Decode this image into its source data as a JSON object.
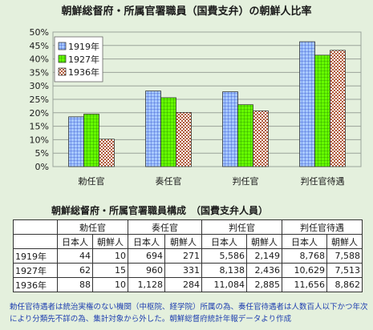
{
  "chart_data": {
    "type": "bar",
    "title": "朝鮮総督府・所属官署職員（国費支弁）の朝鮮人比率",
    "categories": [
      "勅任官",
      "奏任官",
      "判任官",
      "判任官待遇"
    ],
    "y_tick_labels": [
      "0%",
      "5%",
      "10%",
      "15%",
      "20%",
      "25%",
      "30%",
      "35%",
      "40%",
      "45%",
      "50%"
    ],
    "ylim": [
      0,
      50
    ],
    "grid": true,
    "legend_position": "top-left",
    "series": [
      {
        "name": "1919年",
        "values": [
          18.5,
          28.1,
          27.8,
          46.4
        ],
        "color": "#a7c8ff",
        "pattern": "grid"
      },
      {
        "name": "1927年",
        "values": [
          19.5,
          25.6,
          23.0,
          41.4
        ],
        "color": "#66ff00",
        "pattern": "grid"
      },
      {
        "name": "1936年",
        "values": [
          10.2,
          20.1,
          20.7,
          43.2
        ],
        "color": "#b05a3a",
        "pattern": "check"
      }
    ]
  },
  "table": {
    "title": "朝鮮総督府・所属官署職員構成　（国費支弁人員）",
    "groups": [
      "勅任官",
      "奏任官",
      "判任官",
      "判任官待遇"
    ],
    "subheaders": [
      "日本人",
      "朝鮮人"
    ],
    "rows": [
      {
        "year": "1919年",
        "cells": [
          "44",
          "10",
          "694",
          "271",
          "5,586",
          "2,149",
          "8,768",
          "7,588"
        ]
      },
      {
        "year": "1927年",
        "cells": [
          "62",
          "15",
          "960",
          "331",
          "8,138",
          "2,436",
          "10,629",
          "7,513"
        ]
      },
      {
        "year": "1936年",
        "cells": [
          "88",
          "10",
          "1,128",
          "284",
          "11,084",
          "2,885",
          "11,656",
          "8,862"
        ]
      }
    ]
  },
  "footnote": "勅任官待遇者は統治実権のない機関（中枢院、経学院）所属の為、奏任官待遇者は人数百人以下かつ年次により分類先不詳の為、集計対象から外した。朝鮮総督府統計年報データより作成"
}
